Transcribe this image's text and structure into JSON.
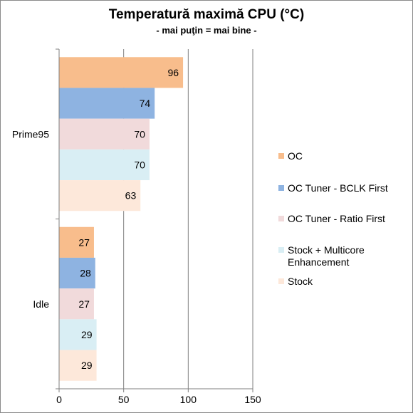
{
  "chart_data": {
    "type": "bar",
    "orientation": "horizontal",
    "title": "Temperatură maximă CPU (°C)",
    "subtitle": "- mai puţin = mai bine -",
    "categories": [
      "Prime95",
      "Idle"
    ],
    "series": [
      {
        "name": "OC",
        "values": [
          96,
          27
        ],
        "color": "#f8bd8c"
      },
      {
        "name": "OC Tuner - BCLK First",
        "values": [
          74,
          28
        ],
        "color": "#8eb3e1"
      },
      {
        "name": "OC Tuner - Ratio First",
        "values": [
          70,
          27
        ],
        "color": "#f1dadb"
      },
      {
        "name": "Stock + Multicore Enhancement",
        "values": [
          70,
          29
        ],
        "color": "#d9eef4"
      },
      {
        "name": "Stock",
        "values": [
          63,
          29
        ],
        "color": "#fde8da"
      }
    ],
    "xlim": [
      0,
      150
    ],
    "xticks": [
      0,
      50,
      100,
      150
    ],
    "grid": true,
    "legend": "right",
    "data_labels": true,
    "xlabel": "",
    "ylabel": ""
  }
}
